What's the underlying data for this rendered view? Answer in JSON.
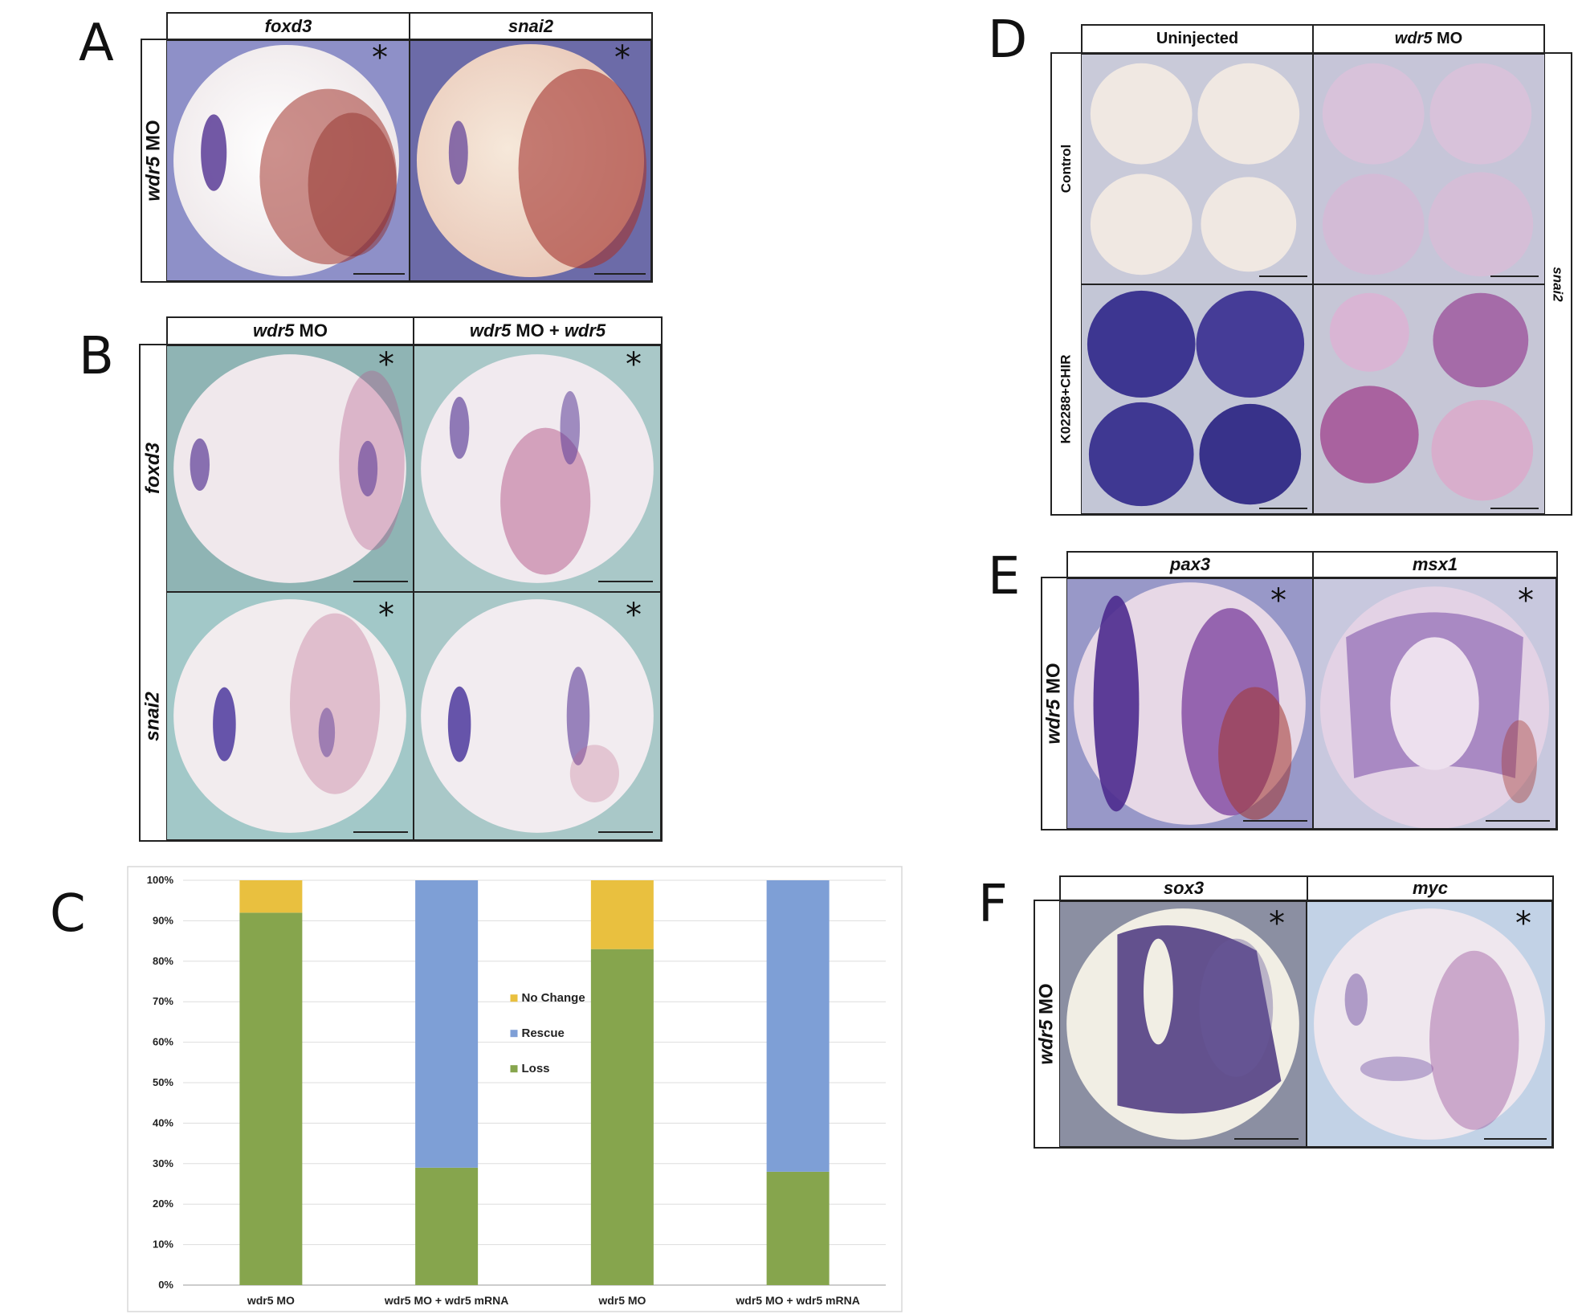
{
  "panels": {
    "A": {
      "letter": "A",
      "columns": [
        "foxd3",
        "snai2"
      ],
      "row_label_italic": "wdr5",
      "row_label_rest": " MO",
      "asterisk": "*"
    },
    "B": {
      "letter": "B",
      "col1_italic": "wdr5",
      "col1_rest": " MO",
      "col2_italic_a": "wdr5",
      "col2_mid": " MO + ",
      "col2_italic_b": "wdr5",
      "rows": [
        "foxd3",
        "snai2"
      ],
      "asterisk": "*"
    },
    "C": {
      "letter": "C"
    },
    "D": {
      "letter": "D",
      "col1": "Uninjected",
      "col2_italic": "wdr5",
      "col2_rest": " MO",
      "row1": "Control",
      "row2": "K02288+CHIR",
      "side_label": "snai2"
    },
    "E": {
      "letter": "E",
      "columns": [
        "pax3",
        "msx1"
      ],
      "row_label_italic": "wdr5",
      "row_label_rest": " MO",
      "asterisk": "*"
    },
    "F": {
      "letter": "F",
      "columns": [
        "sox3",
        "myc"
      ],
      "row_label_italic": "wdr5",
      "row_label_rest": " MO",
      "asterisk": "*"
    }
  },
  "colors": {
    "no_change": "#E9C03F",
    "rescue": "#7E9FD6",
    "loss": "#86A54D",
    "blue_bg": "#8E90C8",
    "teal_bg": "#8FB4B4",
    "embryo": "#F1E8E2",
    "purple_stain": "#5B3C97",
    "red_stain": "#A3342E"
  },
  "chart_data": {
    "type": "bar",
    "stacked": true,
    "categories": [
      "wdr5 MO",
      "wdr5 MO + wdr5 mRNA",
      "wdr5 MO",
      "wdr5 MO + wdr5 mRNA"
    ],
    "series": [
      {
        "name": "Loss",
        "values": [
          92,
          29,
          83,
          28
        ]
      },
      {
        "name": "Rescue",
        "values": [
          0,
          71,
          0,
          72
        ]
      },
      {
        "name": "No Change",
        "values": [
          8,
          0,
          17,
          0
        ]
      }
    ],
    "legend_order": [
      "No Change",
      "Rescue",
      "Loss"
    ],
    "ylim": [
      0,
      100
    ],
    "yticks": [
      "0%",
      "10%",
      "20%",
      "30%",
      "40%",
      "50%",
      "60%",
      "70%",
      "80%",
      "90%",
      "100%"
    ],
    "grid": true,
    "legend_position": "center"
  }
}
